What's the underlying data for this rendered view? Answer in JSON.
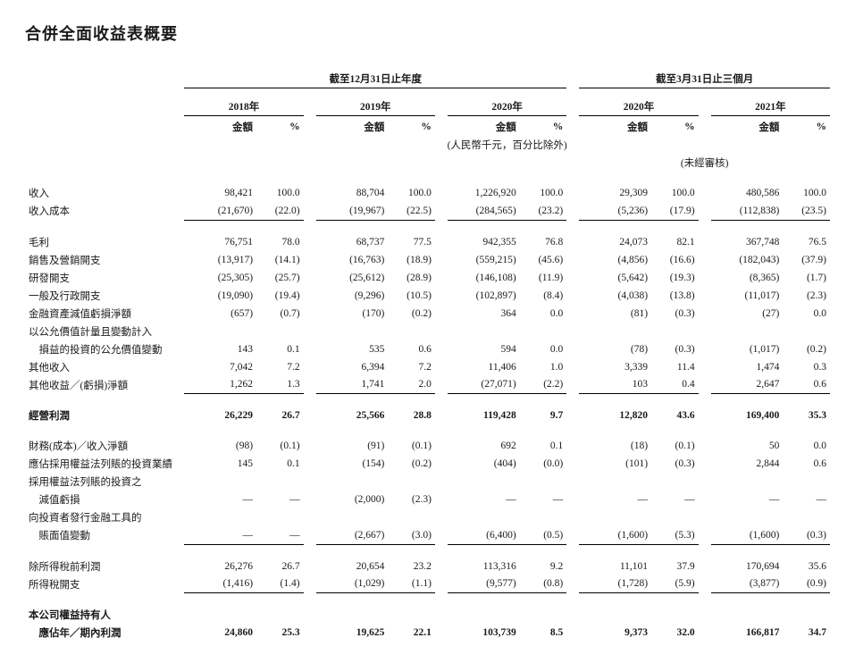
{
  "title": "合併全面收益表概要",
  "headers": {
    "annual_span": "截至12月31日止年度",
    "quarter_span": "截至3月31日止三個月",
    "years": [
      "2018年",
      "2019年",
      "2020年",
      "2020年",
      "2021年"
    ],
    "amount": "金額",
    "pct": "%",
    "unit_note": "(人民幣千元，百分比除外)",
    "unaudited": "(未經審核)"
  },
  "rows": [
    {
      "label": "收入",
      "v": [
        [
          "98,421",
          "100.0"
        ],
        [
          "88,704",
          "100.0"
        ],
        [
          "1,226,920",
          "100.0"
        ],
        [
          "29,309",
          "100.0"
        ],
        [
          "480,586",
          "100.0"
        ]
      ]
    },
    {
      "label": "收入成本",
      "v": [
        [
          "(21,670)",
          "(22.0)"
        ],
        [
          "(19,967)",
          "(22.5)"
        ],
        [
          "(284,565)",
          "(23.2)"
        ],
        [
          "(5,236)",
          "(17.9)"
        ],
        [
          "(112,838)",
          "(23.5)"
        ]
      ],
      "bb": true
    },
    {
      "label": "毛利",
      "v": [
        [
          "76,751",
          "78.0"
        ],
        [
          "68,737",
          "77.5"
        ],
        [
          "942,355",
          "76.8"
        ],
        [
          "24,073",
          "82.1"
        ],
        [
          "367,748",
          "76.5"
        ]
      ]
    },
    {
      "label": "銷售及營銷開支",
      "v": [
        [
          "(13,917)",
          "(14.1)"
        ],
        [
          "(16,763)",
          "(18.9)"
        ],
        [
          "(559,215)",
          "(45.6)"
        ],
        [
          "(4,856)",
          "(16.6)"
        ],
        [
          "(182,043)",
          "(37.9)"
        ]
      ]
    },
    {
      "label": "研發開支",
      "v": [
        [
          "(25,305)",
          "(25.7)"
        ],
        [
          "(25,612)",
          "(28.9)"
        ],
        [
          "(146,108)",
          "(11.9)"
        ],
        [
          "(5,642)",
          "(19.3)"
        ],
        [
          "(8,365)",
          "(1.7)"
        ]
      ]
    },
    {
      "label": "一般及行政開支",
      "v": [
        [
          "(19,090)",
          "(19.4)"
        ],
        [
          "(9,296)",
          "(10.5)"
        ],
        [
          "(102,897)",
          "(8.4)"
        ],
        [
          "(4,038)",
          "(13.8)"
        ],
        [
          "(11,017)",
          "(2.3)"
        ]
      ]
    },
    {
      "label": "金融資產減值虧損淨額",
      "v": [
        [
          "(657)",
          "(0.7)"
        ],
        [
          "(170)",
          "(0.2)"
        ],
        [
          "364",
          "0.0"
        ],
        [
          "(81)",
          "(0.3)"
        ],
        [
          "(27)",
          "0.0"
        ]
      ]
    },
    {
      "label": "以公允價值計量且變動計入",
      "v": null
    },
    {
      "label": "　損益的投資的公允價值變動",
      "v": [
        [
          "143",
          "0.1"
        ],
        [
          "535",
          "0.6"
        ],
        [
          "594",
          "0.0"
        ],
        [
          "(78)",
          "(0.3)"
        ],
        [
          "(1,017)",
          "(0.2)"
        ]
      ]
    },
    {
      "label": "其他收入",
      "v": [
        [
          "7,042",
          "7.2"
        ],
        [
          "6,394",
          "7.2"
        ],
        [
          "11,406",
          "1.0"
        ],
        [
          "3,339",
          "11.4"
        ],
        [
          "1,474",
          "0.3"
        ]
      ]
    },
    {
      "label": "其他收益／(虧損)淨額",
      "v": [
        [
          "1,262",
          "1.3"
        ],
        [
          "1,741",
          "2.0"
        ],
        [
          "(27,071)",
          "(2.2)"
        ],
        [
          "103",
          "0.4"
        ],
        [
          "2,647",
          "0.6"
        ]
      ],
      "bb": true
    },
    {
      "label": "經營利潤",
      "bold": true,
      "v": [
        [
          "26,229",
          "26.7"
        ],
        [
          "25,566",
          "28.8"
        ],
        [
          "119,428",
          "9.7"
        ],
        [
          "12,820",
          "43.6"
        ],
        [
          "169,400",
          "35.3"
        ]
      ]
    },
    {
      "label": "財務(成本)／收入淨額",
      "v": [
        [
          "(98)",
          "(0.1)"
        ],
        [
          "(91)",
          "(0.1)"
        ],
        [
          "692",
          "0.1"
        ],
        [
          "(18)",
          "(0.1)"
        ],
        [
          "50",
          "0.0"
        ]
      ]
    },
    {
      "label": "應佔採用權益法列賬的投資業績",
      "v": [
        [
          "145",
          "0.1"
        ],
        [
          "(154)",
          "(0.2)"
        ],
        [
          "(404)",
          "(0.0)"
        ],
        [
          "(101)",
          "(0.3)"
        ],
        [
          "2,844",
          "0.6"
        ]
      ]
    },
    {
      "label": "採用權益法列賬的投資之",
      "v": null
    },
    {
      "label": "　減值虧損",
      "v": [
        [
          "—",
          "—"
        ],
        [
          "(2,000)",
          "(2.3)"
        ],
        [
          "—",
          "—"
        ],
        [
          "—",
          "—"
        ],
        [
          "—",
          "—"
        ]
      ]
    },
    {
      "label": "向投資者發行金融工具的",
      "v": null
    },
    {
      "label": "　賬面值變動",
      "v": [
        [
          "—",
          "—"
        ],
        [
          "(2,667)",
          "(3.0)"
        ],
        [
          "(6,400)",
          "(0.5)"
        ],
        [
          "(1,600)",
          "(5.3)"
        ],
        [
          "(1,600)",
          "(0.3)"
        ]
      ],
      "bb": true
    },
    {
      "label": "除所得稅前利潤",
      "v": [
        [
          "26,276",
          "26.7"
        ],
        [
          "20,654",
          "23.2"
        ],
        [
          "113,316",
          "9.2"
        ],
        [
          "11,101",
          "37.9"
        ],
        [
          "170,694",
          "35.6"
        ]
      ]
    },
    {
      "label": "所得稅開支",
      "v": [
        [
          "(1,416)",
          "(1.4)"
        ],
        [
          "(1,029)",
          "(1.1)"
        ],
        [
          "(9,577)",
          "(0.8)"
        ],
        [
          "(1,728)",
          "(5.9)"
        ],
        [
          "(3,877)",
          "(0.9)"
        ]
      ],
      "bb": true
    },
    {
      "label": "本公司權益持有人",
      "bold": true,
      "v": null
    },
    {
      "label": "　應佔年／期內利潤",
      "bold": true,
      "v": [
        [
          "24,860",
          "25.3"
        ],
        [
          "19,625",
          "22.1"
        ],
        [
          "103,739",
          "8.5"
        ],
        [
          "9,373",
          "32.0"
        ],
        [
          "166,817",
          "34.7"
        ]
      ]
    }
  ]
}
